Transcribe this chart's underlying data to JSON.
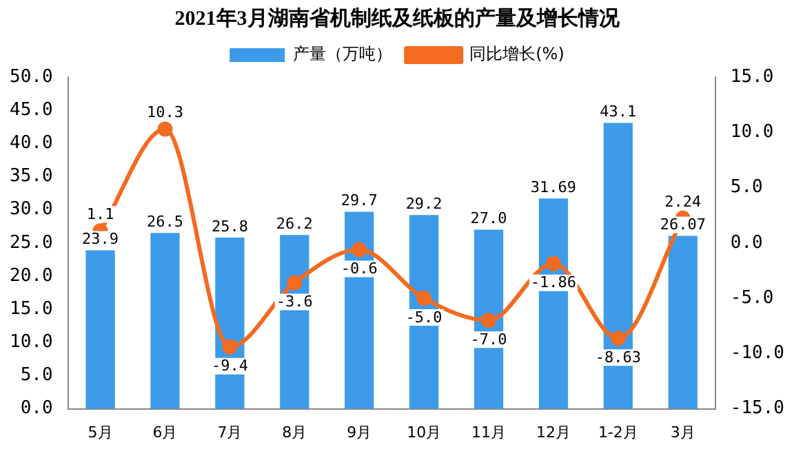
{
  "chart_data": {
    "type": "bar",
    "title": "2021年3月湖南省机制纸及纸板的产量及增长情况",
    "categories": [
      "5月",
      "6月",
      "7月",
      "8月",
      "9月",
      "10月",
      "11月",
      "12月",
      "1-2月",
      "3月"
    ],
    "series": [
      {
        "name": "产量（万吨）",
        "color": "#3d9be9",
        "values": [
          23.9,
          26.5,
          25.8,
          26.2,
          29.7,
          29.2,
          27.0,
          31.69,
          43.1,
          26.07
        ],
        "value_labels": [
          "23.9",
          "26.5",
          "25.8",
          "26.2",
          "29.7",
          "29.2",
          "27.0",
          "31.69",
          "43.1",
          "26.07"
        ]
      },
      {
        "name": "同比增长(%)",
        "type": "line",
        "axis": "y2",
        "color": "#f26b21",
        "values": [
          1.1,
          10.3,
          -9.4,
          -3.6,
          -0.6,
          -5.0,
          -7.0,
          -1.86,
          -8.63,
          2.24
        ],
        "value_labels": [
          "1.1",
          "10.3",
          "-9.4",
          "-3.6",
          "-0.6",
          "-5.0",
          "-7.0",
          "-1.86",
          "-8.63",
          "2.24"
        ]
      }
    ],
    "ylim": [
      0,
      50
    ],
    "yticks": [
      {
        "value": 0,
        "label": "0.0"
      },
      {
        "value": 5,
        "label": "5.0"
      },
      {
        "value": 10,
        "label": "10.0"
      },
      {
        "value": 15,
        "label": "15.0"
      },
      {
        "value": 20,
        "label": "20.0"
      },
      {
        "value": 25,
        "label": "25.0"
      },
      {
        "value": 30,
        "label": "30.0"
      },
      {
        "value": 35,
        "label": "35.0"
      },
      {
        "value": 40,
        "label": "40.0"
      },
      {
        "value": 45,
        "label": "45.0"
      },
      {
        "value": 50,
        "label": "50.0"
      }
    ],
    "y2lim": [
      -15,
      15
    ],
    "y2ticks": [
      {
        "value": -15,
        "label": "-15.0"
      },
      {
        "value": -10,
        "label": "-10.0"
      },
      {
        "value": -5,
        "label": "-5.0"
      },
      {
        "value": 0,
        "label": "0.0"
      },
      {
        "value": 5,
        "label": "5.0"
      },
      {
        "value": 10,
        "label": "10.0"
      },
      {
        "value": 15,
        "label": "15.0"
      }
    ],
    "grid": false,
    "legend": "top",
    "marker": "circle"
  }
}
